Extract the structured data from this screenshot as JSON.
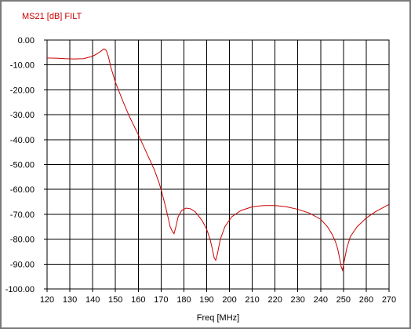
{
  "chart_data": {
    "type": "line",
    "title": "MS21 [dB] FILT",
    "xlabel": "Freq [MHz]",
    "ylabel": "",
    "xlim": [
      120,
      270
    ],
    "ylim": [
      -100,
      0
    ],
    "x_ticks": [
      "120",
      "130",
      "140",
      "150",
      "160",
      "170",
      "180",
      "190",
      "200",
      "210",
      "220",
      "230",
      "240",
      "250",
      "260",
      "270"
    ],
    "y_ticks": [
      "0.00",
      "-10.00",
      "-20.00",
      "-30.00",
      "-40.00",
      "-50.00",
      "-60.00",
      "-70.00",
      "-80.00",
      "-90.00",
      "-100.00"
    ],
    "grid": true,
    "line_color": "#cc0000",
    "series": [
      {
        "x": [
          120,
          124,
          128,
          132,
          136,
          140,
          142,
          144,
          145,
          146,
          147,
          148,
          150,
          153,
          156,
          160,
          164,
          167,
          169,
          170,
          171,
          172,
          173,
          174,
          175,
          175.7,
          176.5,
          177.5,
          179,
          181,
          183,
          185,
          188,
          190,
          191.5,
          192.5,
          193.3,
          194,
          194.7,
          196,
          198,
          201,
          205,
          210,
          215,
          220,
          225,
          230,
          235,
          240,
          243,
          245,
          246.5,
          247.5,
          248.3,
          249,
          249.6,
          250.3,
          251.5,
          253,
          256,
          260,
          264,
          268,
          270
        ],
        "y": [
          -7.2,
          -7.3,
          -7.5,
          -7.6,
          -7.5,
          -6.5,
          -5.5,
          -4.2,
          -3.5,
          -4.2,
          -7.0,
          -11.0,
          -17.0,
          -24.0,
          -30.5,
          -38.0,
          -46.0,
          -52.0,
          -57.0,
          -60.0,
          -63.5,
          -67.0,
          -71.0,
          -75.0,
          -77.0,
          -77.8,
          -75.0,
          -71.0,
          -68.5,
          -67.5,
          -67.8,
          -69.0,
          -72.5,
          -76.0,
          -80.0,
          -84.0,
          -87.5,
          -88.5,
          -86.0,
          -80.0,
          -75.0,
          -71.0,
          -68.5,
          -67.0,
          -66.5,
          -66.5,
          -67.0,
          -68.0,
          -69.5,
          -72.0,
          -75.0,
          -78.0,
          -81.0,
          -84.0,
          -87.5,
          -91.0,
          -92.5,
          -89.0,
          -83.5,
          -79.0,
          -75.0,
          -71.5,
          -69.0,
          -67.0,
          -66.0
        ]
      }
    ]
  }
}
